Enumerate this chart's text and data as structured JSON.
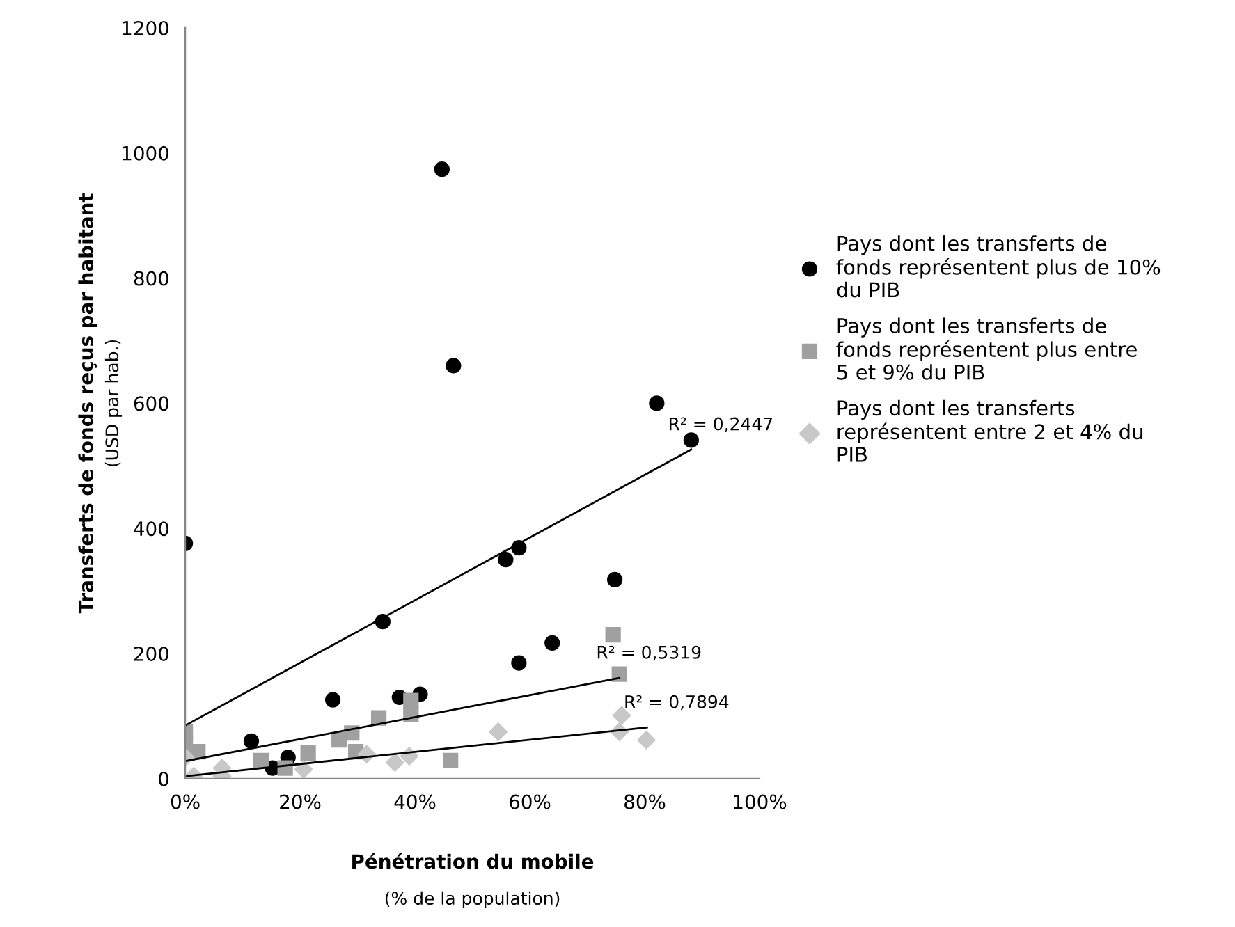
{
  "chart_data": {
    "type": "scatter",
    "xlabel": "Pénétration du mobile (% de la population)",
    "ylabel": "Transferts de fonds reçus par habitant (USD par hab.)",
    "xlim": [
      0,
      100
    ],
    "xticks": [
      {
        "value": 0,
        "label": "0%"
      },
      {
        "value": 20,
        "label": "20%"
      },
      {
        "value": 40,
        "label": "40%"
      },
      {
        "value": 60,
        "label": "60%"
      },
      {
        "value": 80,
        "label": "80%"
      },
      {
        "value": 100,
        "label": "100%"
      }
    ],
    "ylim": [
      0,
      1200
    ],
    "yticks": [
      0,
      200,
      400,
      600,
      800,
      1000,
      1200
    ],
    "grid": false,
    "legend": "right",
    "series": [
      {
        "name": "Pays dont les transferts de fonds représentent plus de 10% du PIB",
        "color": "#000000",
        "marker": "circle",
        "x": [
          0,
          11.5,
          15.2,
          17.9,
          25.7,
          34.4,
          37.3,
          40.9,
          44.7,
          46.7,
          55.8,
          58.1,
          58.1,
          63.9,
          74.8,
          82.1,
          88.1
        ],
        "values": [
          376,
          60,
          17,
          34,
          126,
          251,
          130,
          135,
          974,
          660,
          350,
          369,
          185,
          217,
          318,
          600,
          541
        ]
      },
      {
        "name": "Pays dont les transferts de fonds représentent plus entre 5 et 9% du PIB",
        "color": "#a0a0a0",
        "marker": "square",
        "x": [
          0,
          0,
          2.2,
          13.2,
          17.4,
          21.4,
          26.8,
          29,
          29.7,
          33.7,
          39.3,
          39.3,
          46.2,
          74.5,
          75.6
        ],
        "values": [
          75,
          55,
          43,
          29,
          17,
          41,
          62,
          73,
          43,
          97,
          125,
          103,
          29,
          230,
          167
        ]
      },
      {
        "name": "Pays dont les transferts représentent entre 2 et 4% du PIB",
        "color": "#c8c8c8",
        "marker": "diamond",
        "x": [
          0,
          1.5,
          6.4,
          6.4,
          20.6,
          31.6,
          36.5,
          39,
          54.5,
          75.6,
          76,
          80.3
        ],
        "values": [
          34,
          4,
          17,
          4,
          15,
          39,
          26,
          36,
          75,
          75,
          101,
          62
        ]
      },
      {
        "type": "line",
        "color": "#000000",
        "marker": "none",
        "x": [
          0,
          88.1
        ],
        "values": [
          85,
          526
        ]
      },
      {
        "type": "line",
        "color": "#000000",
        "marker": "none",
        "x": [
          0,
          75.6
        ],
        "values": [
          28,
          161
        ]
      },
      {
        "type": "line",
        "color": "#000000",
        "marker": "none",
        "x": [
          0,
          80.4
        ],
        "values": [
          4,
          82
        ]
      }
    ],
    "annotations": [
      {
        "text": "R² = 0,2447",
        "x": 88.1,
        "y": 526
      },
      {
        "text": "R² = 0,5319",
        "x": 75.6,
        "y": 161
      },
      {
        "text": "R² = 0,7894",
        "x": 80.4,
        "y": 82
      }
    ]
  }
}
